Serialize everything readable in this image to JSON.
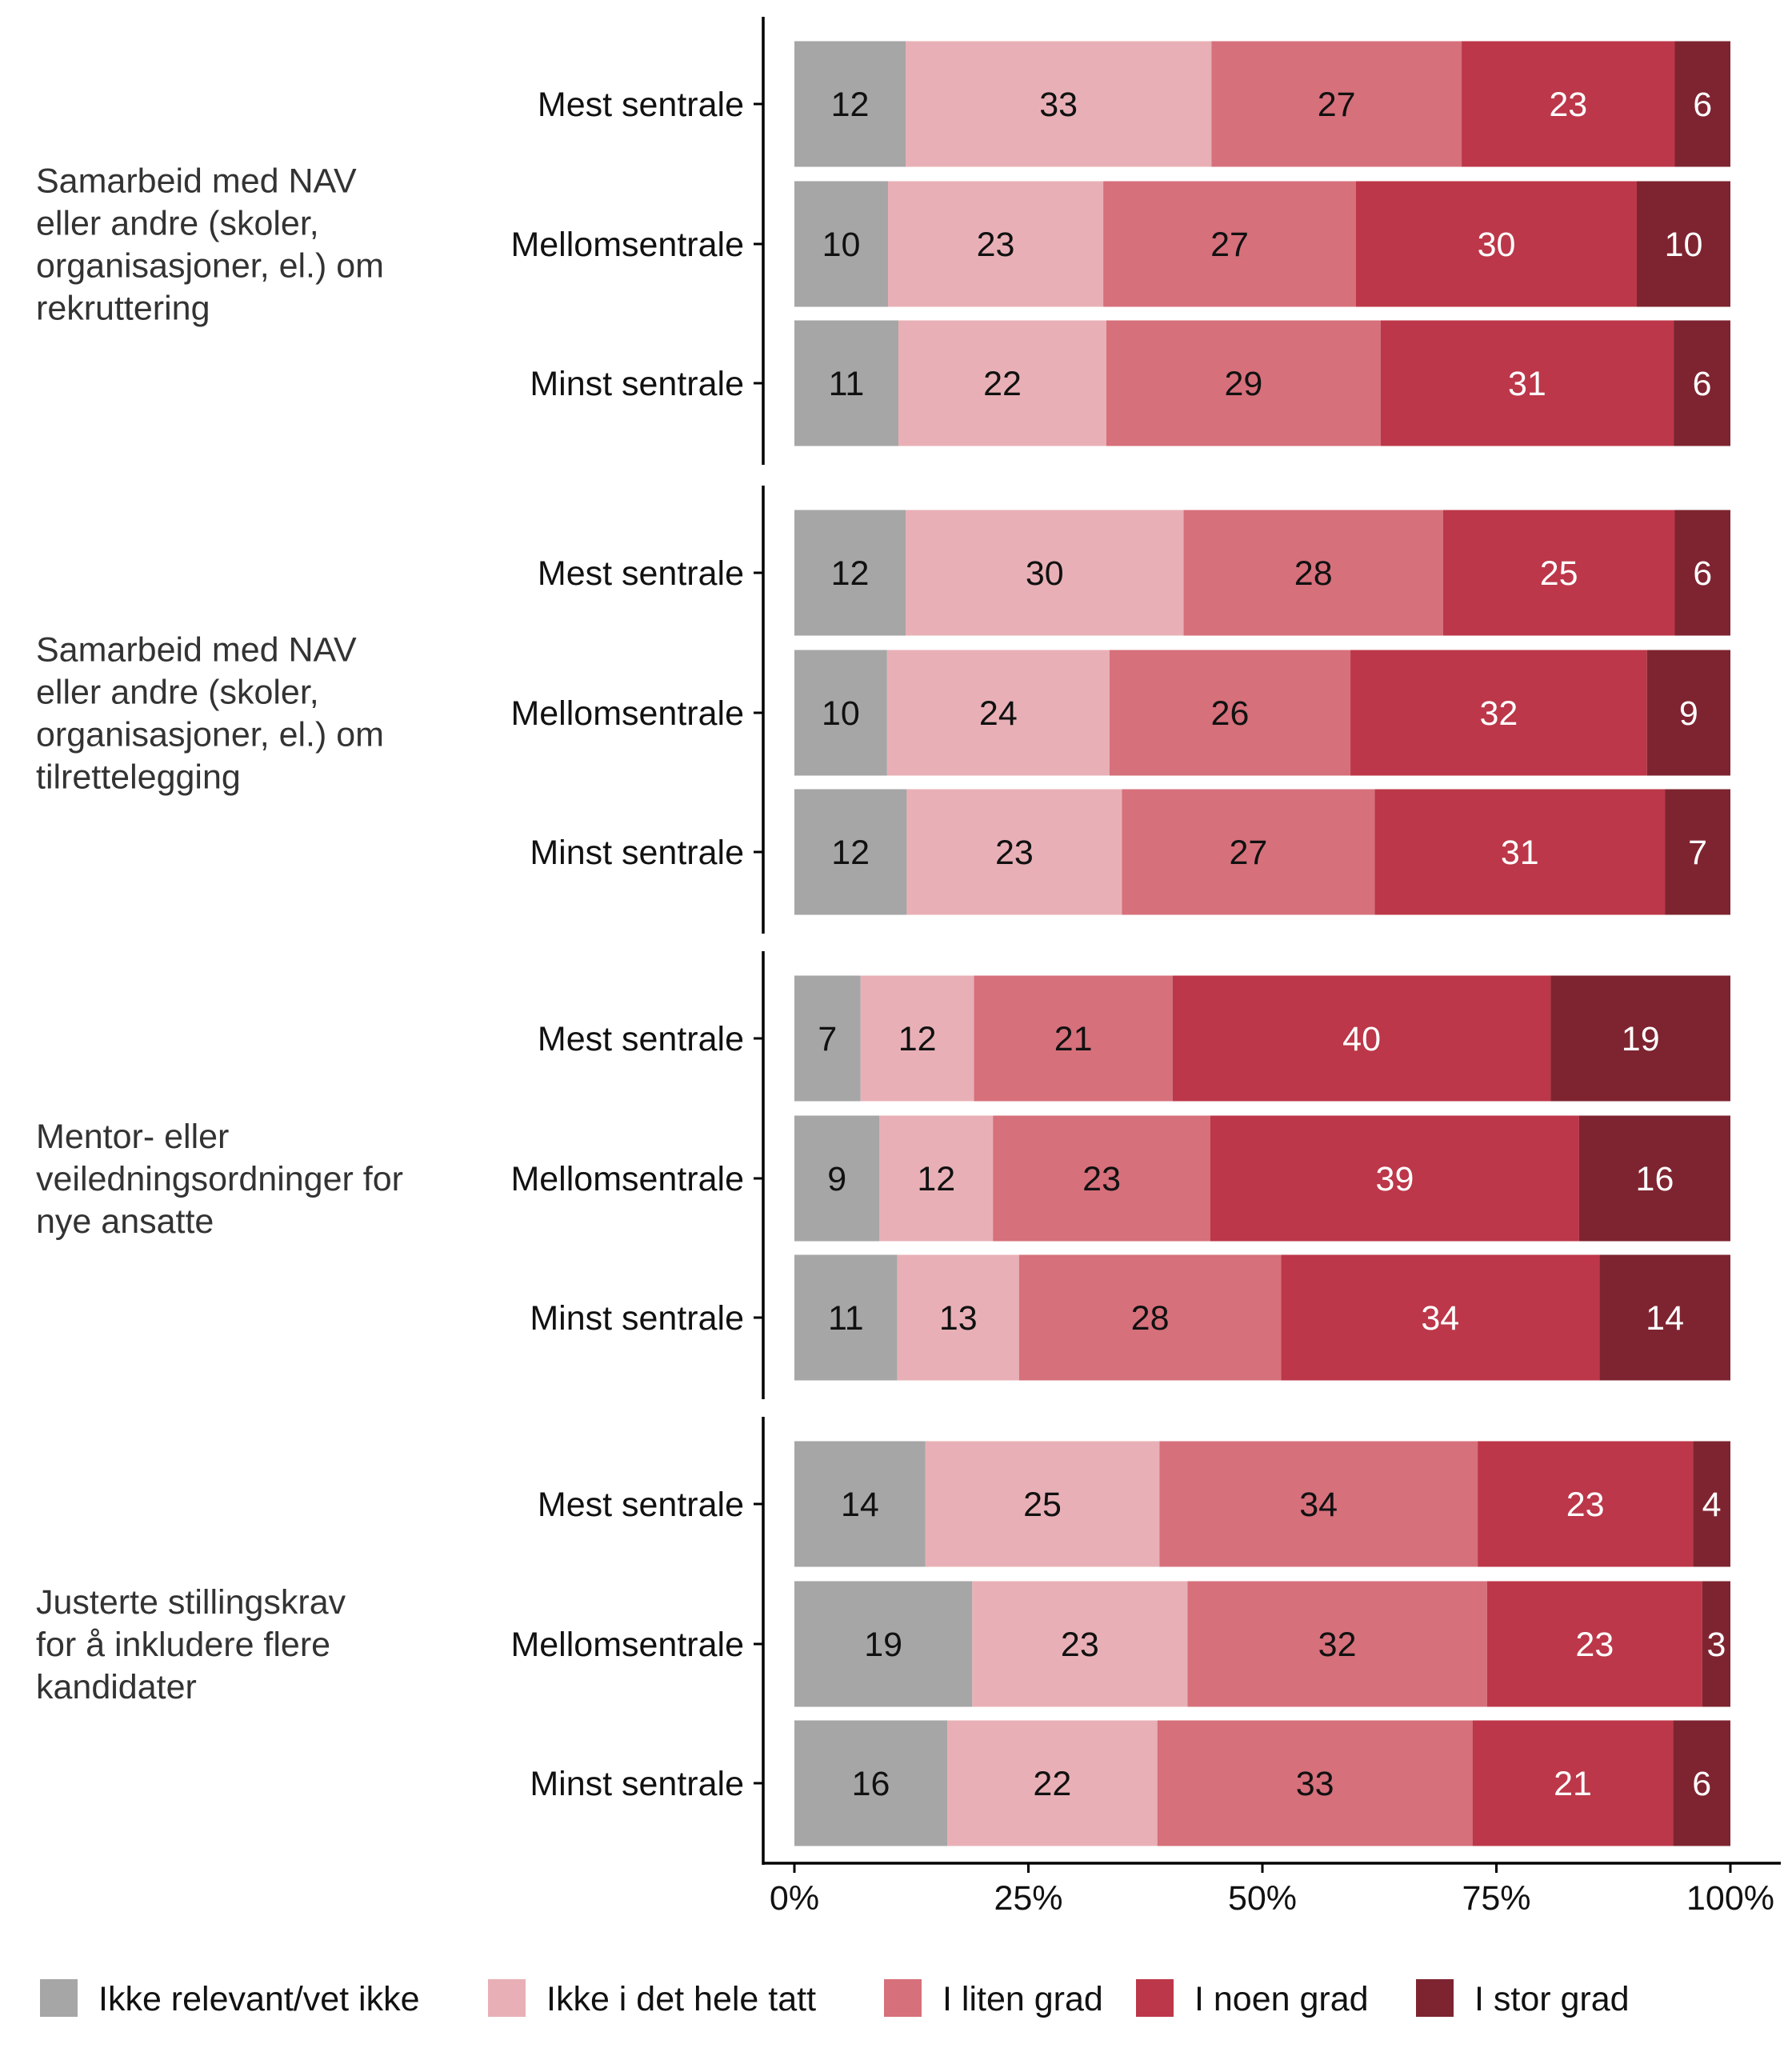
{
  "chart_data": {
    "type": "bar",
    "orientation": "horizontal",
    "stacked": "percent",
    "xlim": [
      0,
      100
    ],
    "x_ticks": [
      "0%",
      "25%",
      "50%",
      "75%",
      "100%"
    ],
    "grid": false,
    "legend_position": "bottom",
    "legend": [
      "Ikke relevant/vet ikke",
      "Ikke i det hele tatt",
      "I liten grad",
      "I noen grad",
      "I stor grad"
    ],
    "colors": [
      "#a6a6a6",
      "#e8b0b6",
      "#d6707b",
      "#bc3749",
      "#7e2430"
    ],
    "label_colors": [
      "#111111",
      "#111111",
      "#111111",
      "#ffffff",
      "#ffffff"
    ],
    "groups": [
      {
        "label": [
          "Samarbeid med NAV",
          "eller andre (skoler,",
          "organisasjoner, el.) om",
          "rekruttering"
        ],
        "rows": [
          {
            "category": "Mest sentrale",
            "values": [
              12,
              33,
              27,
              23,
              6
            ]
          },
          {
            "category": "Mellomsentrale",
            "values": [
              10,
              23,
              27,
              30,
              10
            ]
          },
          {
            "category": "Minst sentrale",
            "values": [
              11,
              22,
              29,
              31,
              6
            ]
          }
        ]
      },
      {
        "label": [
          "Samarbeid med NAV",
          "eller andre (skoler,",
          "organisasjoner, el.) om",
          "tilrettelegging"
        ],
        "rows": [
          {
            "category": "Mest sentrale",
            "values": [
              12,
              30,
              28,
              25,
              6
            ]
          },
          {
            "category": "Mellomsentrale",
            "values": [
              10,
              24,
              26,
              32,
              9
            ]
          },
          {
            "category": "Minst sentrale",
            "values": [
              12,
              23,
              27,
              31,
              7
            ]
          }
        ]
      },
      {
        "label": [
          "Mentor- eller",
          "veiledningsordninger for",
          "nye ansatte"
        ],
        "rows": [
          {
            "category": "Mest sentrale",
            "values": [
              7,
              12,
              21,
              40,
              19
            ]
          },
          {
            "category": "Mellomsentrale",
            "values": [
              9,
              12,
              23,
              39,
              16
            ]
          },
          {
            "category": "Minst sentrale",
            "values": [
              11,
              13,
              28,
              34,
              14
            ]
          }
        ]
      },
      {
        "label": [
          "Justerte stillingskrav",
          "for å inkludere flere",
          "kandidater"
        ],
        "rows": [
          {
            "category": "Mest sentrale",
            "values": [
              14,
              25,
              34,
              23,
              4
            ]
          },
          {
            "category": "Mellomsentrale",
            "values": [
              19,
              23,
              32,
              23,
              3
            ]
          },
          {
            "category": "Minst sentrale",
            "values": [
              16,
              22,
              33,
              21,
              6
            ]
          }
        ]
      }
    ]
  }
}
